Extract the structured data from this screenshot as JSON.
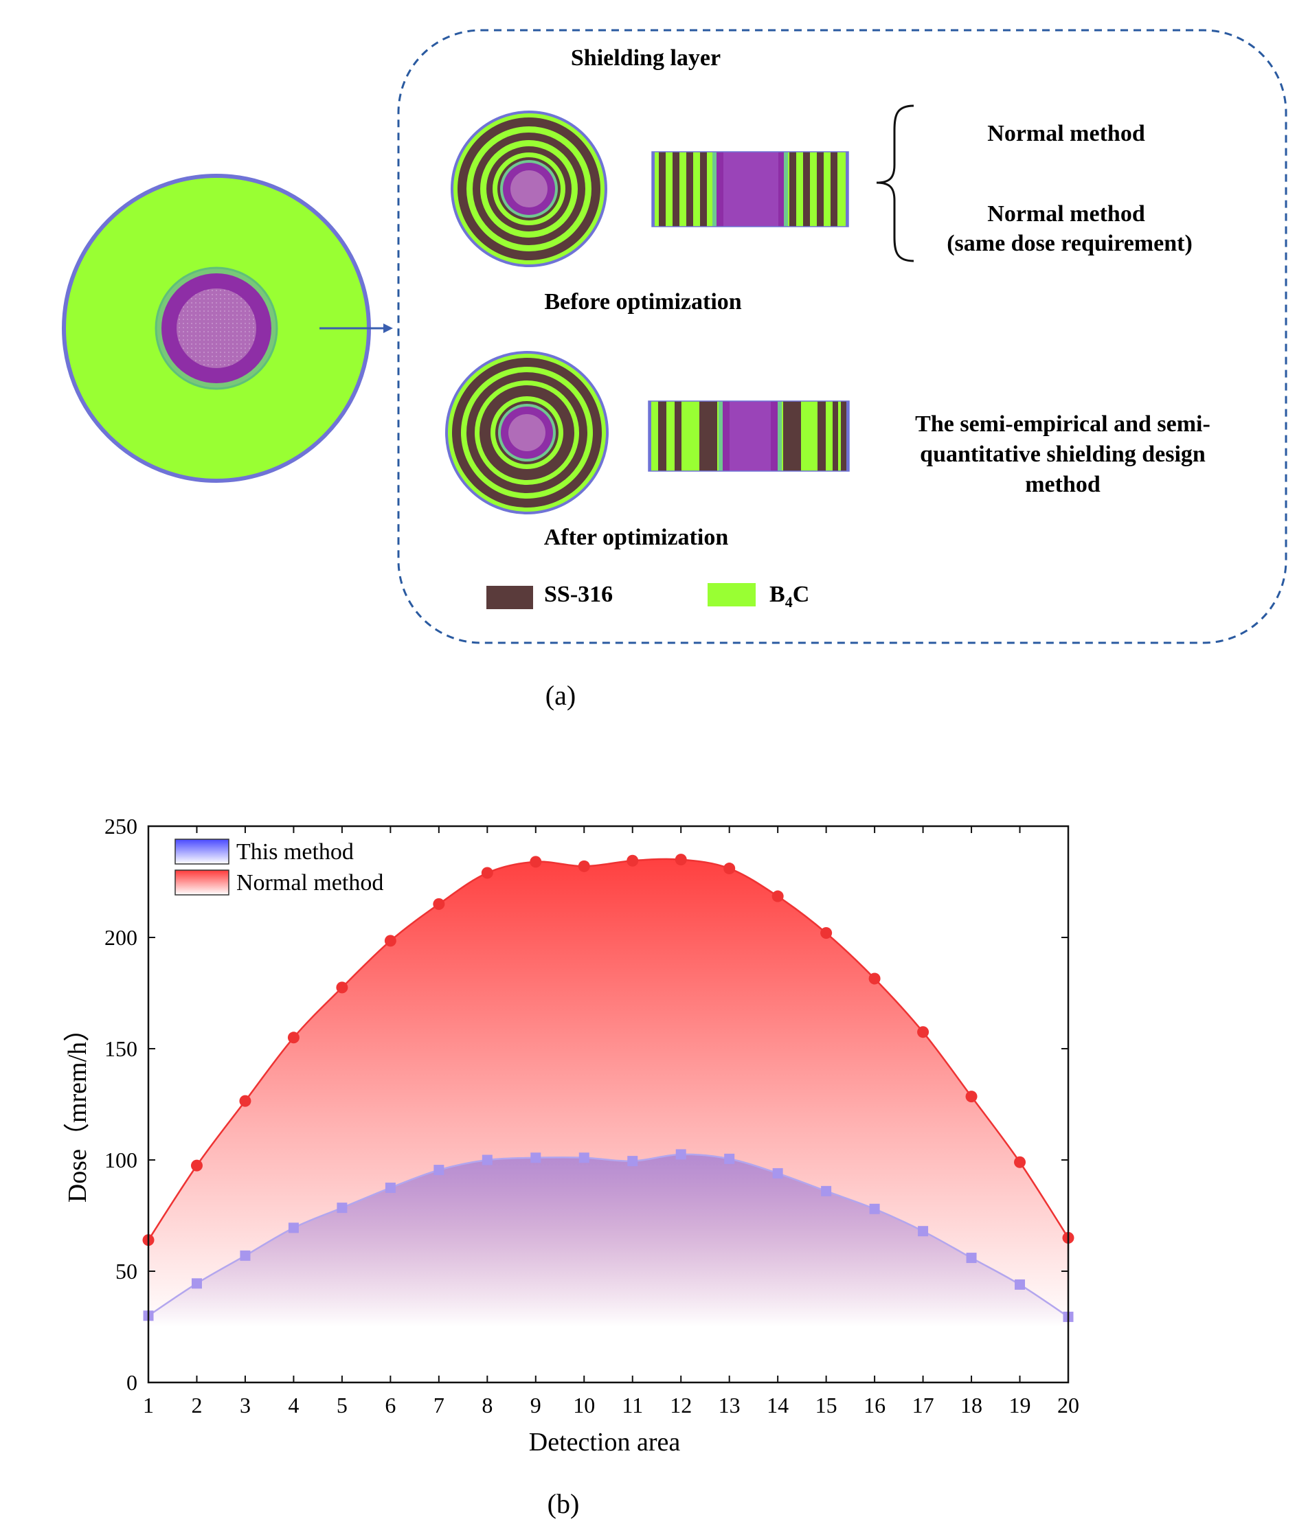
{
  "panel_a": {
    "caption": "(a)",
    "shielding_layer_label": "Shielding layer",
    "before_label": "Before optimization",
    "after_label": "After optimization",
    "normal_method_1": "Normal method",
    "normal_method_2_line1": "Normal method",
    "normal_method_2_line2": "(same dose requirement)",
    "semi_line1": "The semi-empirical and semi-",
    "semi_line2": "quantitative shielding design",
    "semi_line3": "method",
    "legend_ss_label": "SS-316",
    "legend_b4c_main": "B",
    "legend_b4c_sub": "4",
    "legend_b4c_end": "C",
    "colors": {
      "b4c": "#99ff33",
      "ss316": "#5a3b3b",
      "core_purple": "#8e2ea6",
      "core_inner": "#b06cb8",
      "outline": "#6f73d6",
      "dashed_box": "#2a5aa0"
    }
  },
  "panel_b": {
    "caption": "(b)"
  },
  "chart_data": {
    "type": "area",
    "title": "",
    "xlabel": "Detection area",
    "ylabel": "Dose（mrem/h）",
    "xlim": [
      1,
      20
    ],
    "ylim": [
      0,
      250
    ],
    "x": [
      1,
      2,
      3,
      4,
      5,
      6,
      7,
      8,
      9,
      10,
      11,
      12,
      13,
      14,
      15,
      16,
      17,
      18,
      19,
      20
    ],
    "x_ticks": [
      "1",
      "2",
      "3",
      "4",
      "5",
      "6",
      "7",
      "8",
      "9",
      "10",
      "11",
      "12",
      "13",
      "14",
      "15",
      "16",
      "17",
      "18",
      "19",
      "20"
    ],
    "y_ticks": [
      "0",
      "50",
      "100",
      "150",
      "200",
      "250"
    ],
    "legend_position": "top-left",
    "series": [
      {
        "name": "This method",
        "color": "#b3a6ee",
        "fill_color": "#9c7ad8",
        "legend_color": "#4a4aff",
        "marker": "square",
        "values": [
          30,
          44.5,
          57,
          69.5,
          78.5,
          87.5,
          95.5,
          100,
          101,
          101,
          99.5,
          102.5,
          100.5,
          94,
          86,
          78,
          68,
          56,
          44,
          29.5
        ]
      },
      {
        "name": "Normal method",
        "color": "#ee3333",
        "fill_color": "#ff4040",
        "legend_color": "#ff3a3a",
        "marker": "circle",
        "values": [
          64,
          97.5,
          126.5,
          155,
          177.5,
          198.5,
          215,
          229,
          234,
          232,
          234.5,
          235,
          231,
          218.5,
          202,
          181.5,
          157.5,
          128.5,
          99,
          65
        ]
      }
    ]
  }
}
